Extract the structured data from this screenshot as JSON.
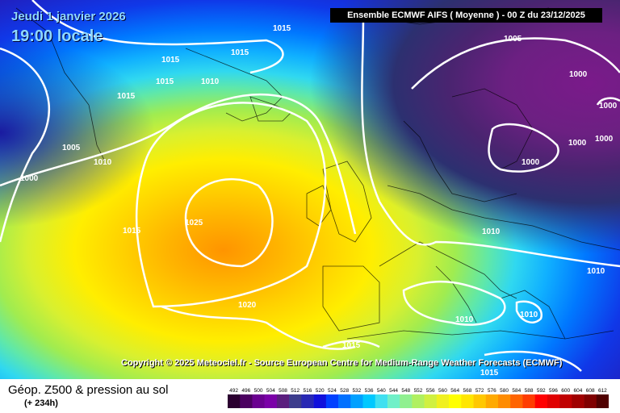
{
  "header": {
    "date": "Jeudi 1 janvier 2026",
    "time": "19:00 locale",
    "model": "Ensemble ECMWF AIFS  ( Moyenne )  - 00 Z du 23/12/2025"
  },
  "copyright": "Copyright © 2025 Meteociel.fr - Source European Centre for Medium-Range Weather Forecasts (ECMWF)",
  "legend": {
    "title": "Géop. Z500 & pression au sol",
    "subtitle": "(+ 234h)",
    "values": [
      "492",
      "496",
      "500",
      "504",
      "508",
      "512",
      "516",
      "520",
      "524",
      "528",
      "532",
      "536",
      "540",
      "544",
      "548",
      "552",
      "556",
      "560",
      "564",
      "568",
      "572",
      "576",
      "580",
      "584",
      "588",
      "592",
      "596",
      "600",
      "604",
      "608",
      "612"
    ],
    "colors": [
      "#2b0030",
      "#4b0060",
      "#6a0090",
      "#7b00a8",
      "#5a1e7e",
      "#3c3c8c",
      "#2828b4",
      "#1010dc",
      "#0040ff",
      "#0070ff",
      "#00a0ff",
      "#00c8ff",
      "#40e0f0",
      "#70f0c8",
      "#90f090",
      "#b0f060",
      "#d0f040",
      "#f0f020",
      "#ffff00",
      "#ffe600",
      "#ffc800",
      "#ffaa00",
      "#ff8c00",
      "#ff6400",
      "#ff3c00",
      "#ff0000",
      "#e00000",
      "#c00000",
      "#a00000",
      "#800000",
      "#500000"
    ]
  },
  "isobars": [
    {
      "label": "1015"
    },
    {
      "label": "1015"
    },
    {
      "label": "1015"
    },
    {
      "label": "1015"
    },
    {
      "label": "1010"
    },
    {
      "label": "1015"
    },
    {
      "label": "1005"
    },
    {
      "label": "1010"
    },
    {
      "label": "1000"
    },
    {
      "label": "1025"
    },
    {
      "label": "1015"
    },
    {
      "label": "1020"
    },
    {
      "label": "1005"
    },
    {
      "label": "1000"
    },
    {
      "label": "1000"
    },
    {
      "label": "1000"
    },
    {
      "label": "1000"
    },
    {
      "label": "1000"
    },
    {
      "label": "1010"
    },
    {
      "label": "1010"
    },
    {
      "label": "1010"
    },
    {
      "label": "1010"
    },
    {
      "label": "1015"
    },
    {
      "label": "1015"
    }
  ]
}
